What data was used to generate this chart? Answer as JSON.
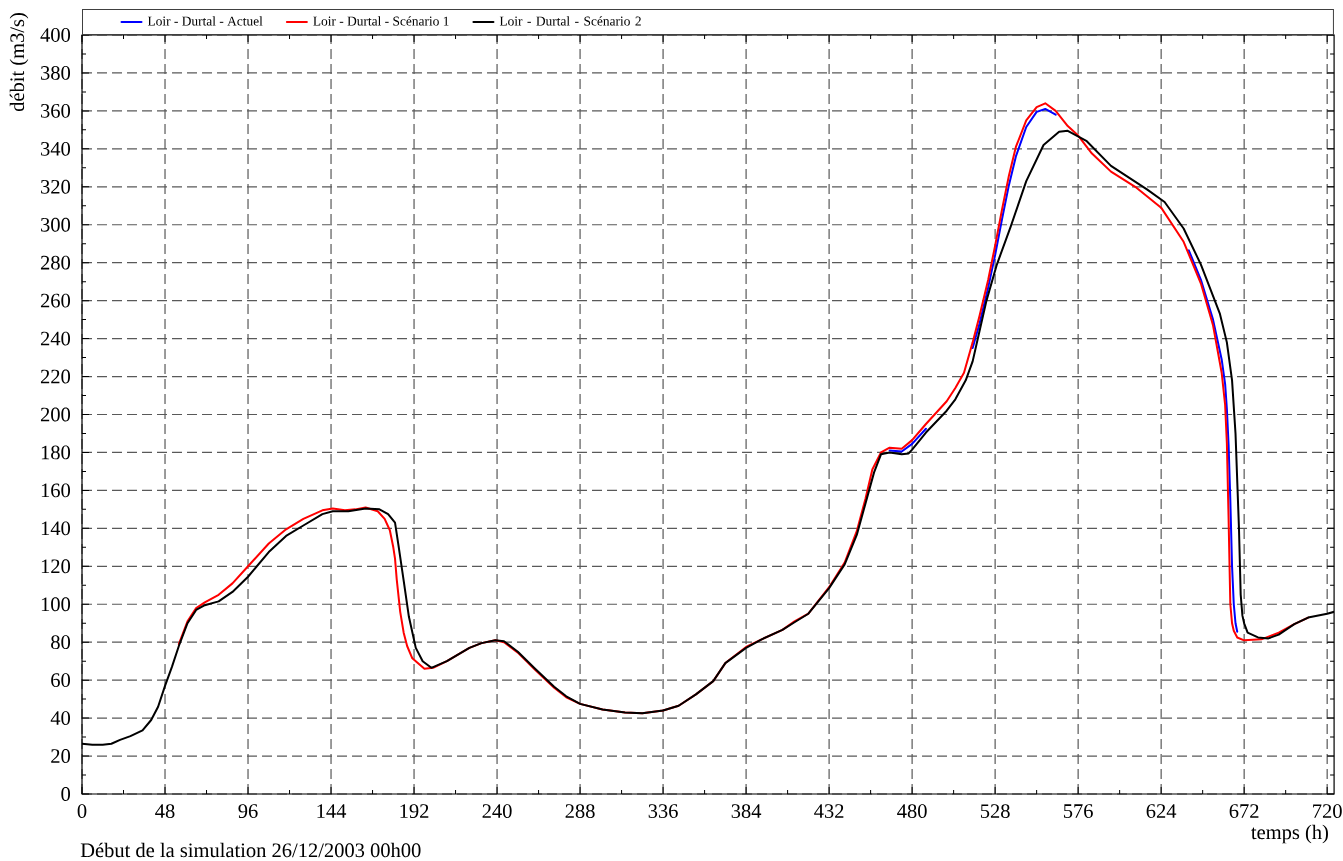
{
  "chart_data": {
    "type": "line",
    "xlabel": "temps (h)",
    "ylabel": "débit (m3/s)",
    "annotations": [
      "Début de la simulation 26/12/2003 00h00"
    ],
    "xlim": [
      0,
      724
    ],
    "ylim": [
      0,
      400
    ],
    "xticks": [
      0,
      {
        "value": 24,
        "label": null
      },
      48,
      {
        "value": 72,
        "label": null
      },
      96,
      {
        "value": 120,
        "label": null
      },
      144,
      {
        "value": 168,
        "label": null
      },
      192,
      {
        "value": 216,
        "label": null
      },
      240,
      {
        "value": 264,
        "label": null
      },
      288,
      {
        "value": 312,
        "label": null
      },
      336,
      {
        "value": 360,
        "label": null
      },
      384,
      {
        "value": 408,
        "label": null
      },
      432,
      {
        "value": 456,
        "label": null
      },
      480,
      {
        "value": 504,
        "label": null
      },
      528,
      {
        "value": 552,
        "label": null
      },
      576,
      {
        "value": 600,
        "label": null
      },
      624,
      {
        "value": 648,
        "label": null
      },
      672,
      {
        "value": 696,
        "label": null
      },
      720
    ],
    "yticks": [
      0,
      {
        "value": 10,
        "label": null
      },
      20,
      {
        "value": 30,
        "label": null
      },
      40,
      {
        "value": 50,
        "label": null
      },
      60,
      {
        "value": 70,
        "label": null
      },
      80,
      {
        "value": 90,
        "label": null
      },
      100,
      {
        "value": 110,
        "label": null
      },
      120,
      {
        "value": 130,
        "label": null
      },
      140,
      {
        "value": 150,
        "label": null
      },
      160,
      {
        "value": 170,
        "label": null
      },
      180,
      {
        "value": 190,
        "label": null
      },
      200,
      {
        "value": 210,
        "label": null
      },
      220,
      {
        "value": 230,
        "label": null
      },
      240,
      {
        "value": 250,
        "label": null
      },
      260,
      {
        "value": 270,
        "label": null
      },
      280,
      {
        "value": 290,
        "label": null
      },
      300,
      {
        "value": 310,
        "label": null
      },
      320,
      {
        "value": 330,
        "label": null
      },
      340,
      {
        "value": 350,
        "label": null
      },
      360,
      {
        "value": 370,
        "label": null
      },
      380,
      {
        "value": 390,
        "label": null
      },
      400
    ],
    "grid": true,
    "legend": "top",
    "marker": "none",
    "line_style": "solid",
    "series": [
      {
        "name": "Loir - Durtal - Actuel",
        "color": "#0000ff",
        "x": [
          467,
          474,
          480,
          488,
          495,
          515,
          519,
          524,
          528,
          532,
          536,
          540,
          546,
          552,
          557,
          563,
          600,
          640,
          647,
          654,
          659,
          661,
          662,
          663,
          664,
          665,
          666,
          667,
          668
        ],
        "values": [
          181,
          180.5,
          184.5,
          192.5,
          null,
          235,
          248,
          267,
          284,
          303,
          321,
          336,
          351.5,
          359.5,
          361,
          358,
          null,
          286.5,
          271,
          250,
          229,
          216,
          203,
          184,
          155,
          120,
          100,
          90,
          85.5
        ]
      },
      {
        "name": "Loir - Durtal - Scénario 1",
        "color": "#ff0000",
        "x": [
          56,
          61,
          66,
          71,
          79,
          87,
          96,
          108,
          118,
          128,
          139,
          145,
          152,
          158,
          164,
          171,
          175,
          178,
          180,
          181,
          182,
          184,
          186,
          188,
          191,
          198,
          203,
          211,
          224,
          231,
          239,
          244,
          252,
          262,
          273,
          280,
          288,
          301,
          314,
          324,
          336,
          345,
          355,
          365,
          372,
          384,
          393,
          405,
          412,
          420,
          432,
          441,
          448,
          453,
          457,
          462,
          467,
          474,
          480,
          488,
          500,
          505,
          510,
          515,
          519,
          524,
          528,
          532,
          536,
          540,
          546,
          552,
          557,
          563,
          570,
          576,
          584,
          595,
          609,
          624,
          637,
          647,
          654,
          659,
          661,
          662,
          663,
          664,
          665,
          666,
          668,
          672,
          682,
          692,
          701,
          709
        ],
        "values": [
          79,
          91,
          98,
          101,
          105,
          111,
          120,
          132,
          139.5,
          145,
          149.5,
          150.5,
          149.5,
          150,
          151,
          149,
          145,
          139,
          130,
          124,
          113,
          96,
          85,
          78,
          71.5,
          66,
          66.5,
          70,
          77,
          79.5,
          81,
          80,
          74.5,
          65.5,
          56,
          51,
          47.5,
          44.5,
          43,
          42.5,
          44,
          46.5,
          52.5,
          59.5,
          69,
          77.5,
          81.5,
          86.5,
          91,
          95,
          109,
          122,
          138.5,
          155.5,
          171,
          180,
          182.5,
          182,
          186.5,
          195,
          207,
          214,
          222,
          238,
          252,
          271,
          289,
          308,
          326,
          341,
          355,
          362,
          364,
          360,
          352,
          347,
          337.5,
          328,
          320,
          309,
          291,
          269,
          247,
          222,
          205,
          185,
          145,
          100,
          90,
          86,
          82.5,
          81,
          81.5,
          85,
          89.5,
          93
        ]
      },
      {
        "name": "Loir - Durtal - Scénario 2",
        "color": "#000000",
        "x": [
          0,
          6,
          12,
          17,
          22,
          28,
          35,
          40,
          44,
          48,
          52,
          56,
          61,
          66,
          71,
          79,
          87,
          96,
          108,
          118,
          128,
          139,
          145,
          154,
          164,
          172,
          177,
          181,
          183,
          186,
          189,
          193,
          197,
          202,
          211,
          224,
          231,
          239,
          244,
          252,
          262,
          273,
          280,
          288,
          301,
          314,
          324,
          336,
          345,
          355,
          365,
          372,
          384,
          393,
          405,
          412,
          420,
          432,
          441,
          448,
          453,
          458,
          462,
          467,
          474,
          478,
          480,
          488,
          500,
          505,
          511,
          515,
          518,
          523,
          529,
          537,
          546,
          556,
          565,
          570,
          581,
          595,
          616,
          626,
          637,
          647,
          658,
          662,
          665,
          667,
          669,
          670,
          671,
          672,
          674,
          680,
          686,
          692,
          701,
          709,
          720,
          724
        ],
        "values": [
          26.5,
          26,
          26,
          26.5,
          28.5,
          30.5,
          33.5,
          39,
          46,
          57,
          67,
          78,
          90,
          97,
          99.5,
          101.5,
          106.5,
          114.5,
          127.5,
          136,
          141.5,
          147.5,
          149,
          149,
          150.5,
          150,
          147.5,
          143,
          131,
          112.5,
          93.5,
          77,
          70,
          66.5,
          70,
          77,
          79.5,
          81,
          80.5,
          75,
          66,
          56.5,
          51.5,
          47.5,
          44.5,
          43,
          42.5,
          44,
          46.5,
          52.5,
          59.5,
          69,
          77,
          81.5,
          86.5,
          90.5,
          95,
          108.5,
          121,
          136.5,
          153,
          169.5,
          179,
          180,
          179,
          179.5,
          181.5,
          190.5,
          202,
          208,
          218,
          228,
          240,
          260,
          279,
          299,
          323,
          342,
          349,
          349.5,
          344,
          331,
          318.5,
          312,
          298,
          279,
          253,
          238,
          218,
          190,
          140,
          105,
          94,
          90,
          85,
          82.5,
          82,
          84,
          89.5,
          93,
          95,
          96
        ]
      }
    ]
  }
}
